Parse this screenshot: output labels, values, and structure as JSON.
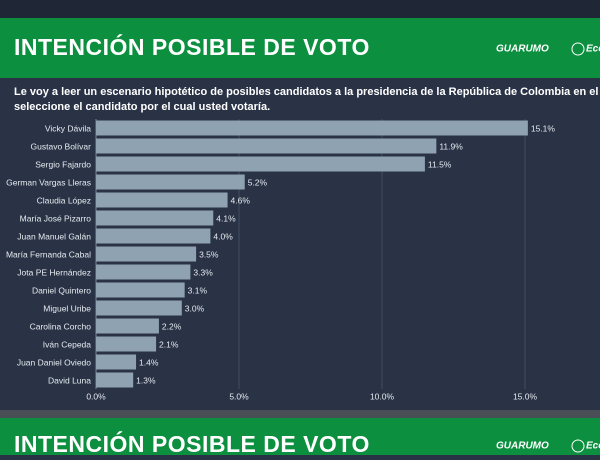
{
  "header": {
    "title": "INTENCIÓN POSIBLE DE VOTO",
    "logo_1": "GUARUMO",
    "logo_2": "Eco"
  },
  "question": [
    "Le voy a leer un escenario hipotético de posibles candidatos a la presidencia de la República de Colombia en el año",
    "seleccione el candidato por el cual usted votaría."
  ],
  "chart_data": {
    "type": "hbar",
    "categories": [
      "Vicky Dávila",
      "Gustavo Bolívar",
      "Sergio Fajardo",
      "German Vargas Lleras",
      "Claudia López",
      "María José Pizarro",
      "Juan Manuel Galán",
      "María Fernanda Cabal",
      "Jota PE Hernández",
      "Daniel Quintero",
      "Miguel Uribe",
      "Carolina Corcho",
      "Iván Cepeda",
      "Juan Daniel Oviedo",
      "David Luna"
    ],
    "values": [
      15.1,
      11.9,
      11.5,
      5.2,
      4.6,
      4.1,
      4.0,
      3.5,
      3.3,
      3.1,
      3.0,
      2.2,
      2.1,
      1.4,
      1.3
    ],
    "value_labels": [
      "15.1%",
      "11.9%",
      "11.5%",
      "5.2%",
      "4.6%",
      "4.1%",
      "4.0%",
      "3.5%",
      "3.3%",
      "3.1%",
      "3.0%",
      "2.2%",
      "2.1%",
      "1.4%",
      "1.3%"
    ],
    "color": "#8fa2b1",
    "xlim": [
      0,
      16
    ],
    "xticks": [
      {
        "value": 0,
        "label": "0.0%"
      },
      {
        "value": 5,
        "label": "5.0%"
      },
      {
        "value": 10,
        "label": "10.0%"
      },
      {
        "value": 15,
        "label": "15.0%"
      }
    ],
    "grid": true
  },
  "next_header": {
    "title": "INTENCIÓN POSIBLE DE VOTO",
    "logo_1": "GUARUMO",
    "logo_2": "Eco"
  }
}
